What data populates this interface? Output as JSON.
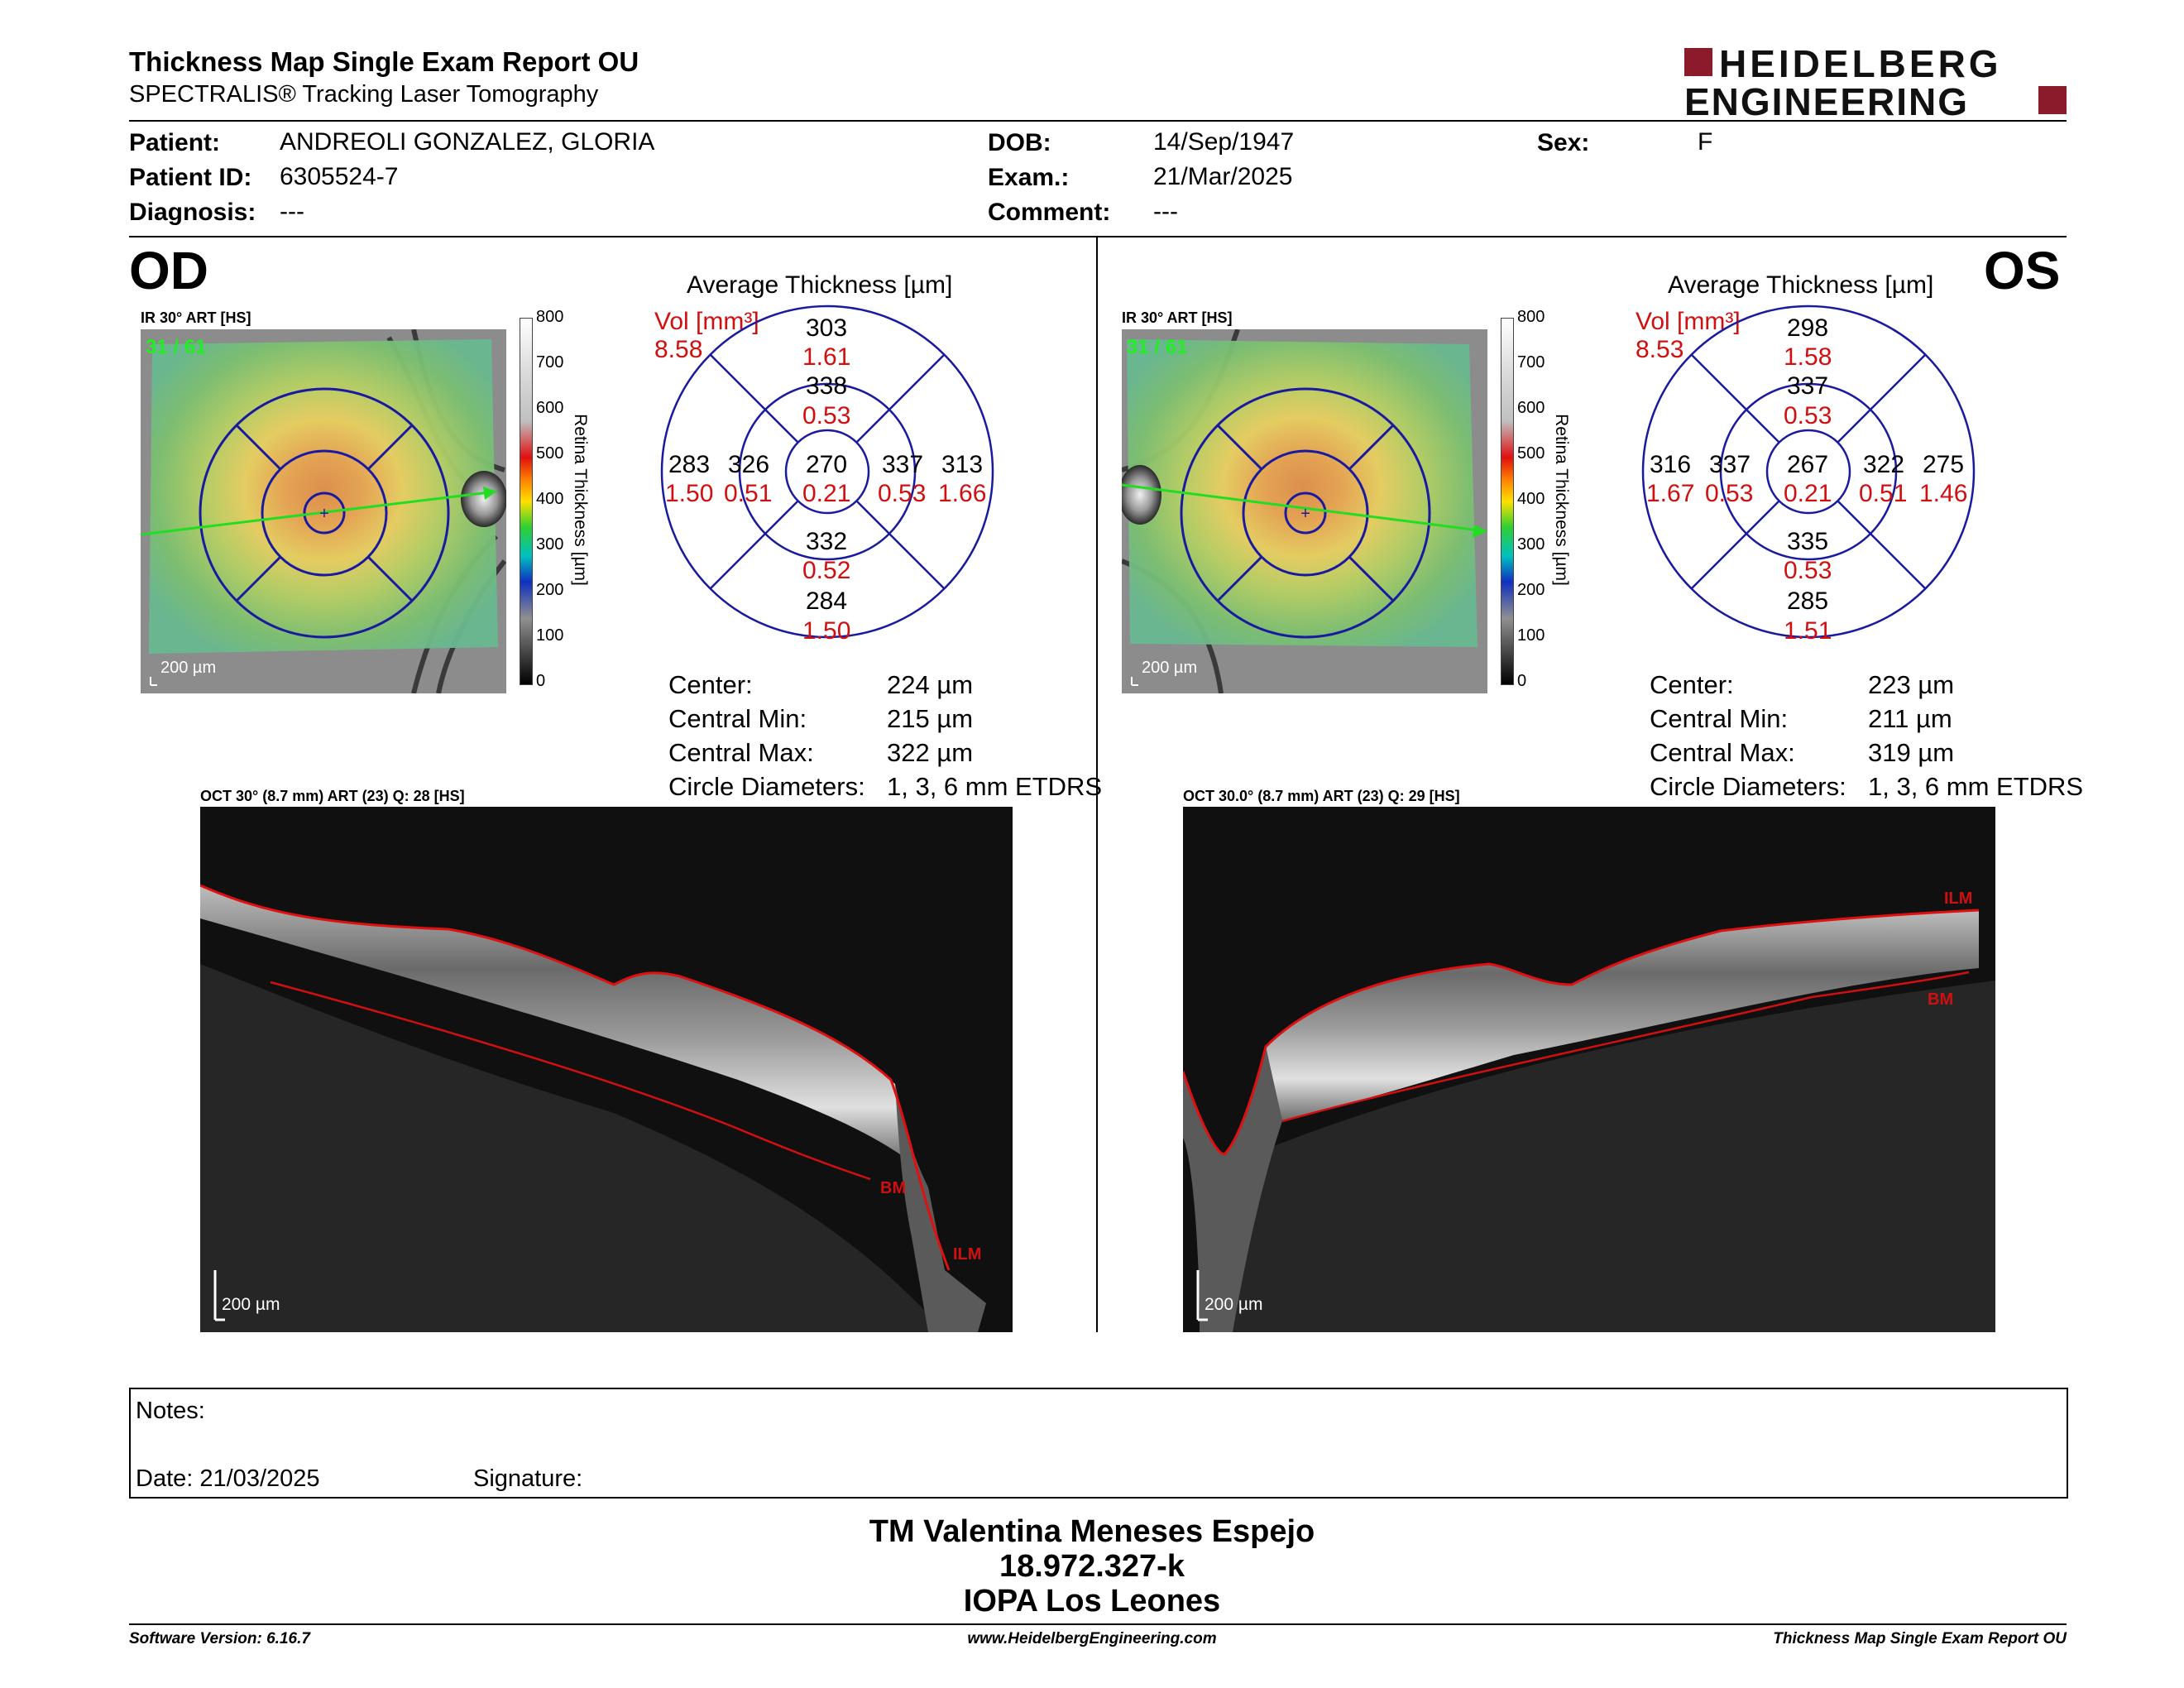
{
  "header": {
    "title": "Thickness Map Single Exam Report OU",
    "subtitle": "SPECTRALIS® Tracking Laser Tomography",
    "logo_line1": "HEIDELBERG",
    "logo_line2": "ENGINEERING",
    "logo_color": "#8b1a2a"
  },
  "patient": {
    "patient_label": "Patient:",
    "patient_value": "ANDREOLI GONZALEZ, GLORIA",
    "id_label": "Patient ID:",
    "id_value": "6305524-7",
    "diagnosis_label": "Diagnosis:",
    "diagnosis_value": "---",
    "dob_label": "DOB:",
    "dob_value": "14/Sep/1947",
    "exam_label": "Exam.:",
    "exam_value": "21/Mar/2025",
    "comment_label": "Comment:",
    "comment_value": "---",
    "sex_label": "Sex:",
    "sex_value": "F"
  },
  "od": {
    "eye": "OD",
    "ir_label": "IR 30° ART [HS]",
    "ir_overlay": "31 / 61",
    "scale_bar": "200 µm",
    "colorbar_ticks": [
      "800",
      "700",
      "600",
      "500",
      "400",
      "300",
      "200",
      "100",
      "0"
    ],
    "colorbar_title": "Retina Thickness [µm]",
    "avg_title": "Average Thickness [µm]",
    "vol_label": "Vol [mm³]",
    "vol_value": "8.58",
    "etdrs": {
      "center": [
        "270",
        "0.21"
      ],
      "inner_sup": [
        "338",
        "0.53"
      ],
      "inner_inf": [
        "332",
        "0.52"
      ],
      "inner_left": [
        "326",
        "0.51"
      ],
      "inner_right": [
        "337",
        "0.53"
      ],
      "outer_sup": [
        "303",
        "1.61"
      ],
      "outer_inf": [
        "284",
        "1.50"
      ],
      "outer_left": [
        "283",
        "1.50"
      ],
      "outer_right": [
        "313",
        "1.66"
      ]
    },
    "stats": [
      {
        "label": "Center:",
        "value": "224 µm"
      },
      {
        "label": "Central Min:",
        "value": "215 µm"
      },
      {
        "label": "Central Max:",
        "value": "322 µm"
      },
      {
        "label": "Circle Diameters:",
        "value": "1, 3, 6 mm ETDRS"
      }
    ],
    "oct_label": "OCT 30° (8.7 mm) ART (23) Q: 28 [HS]",
    "oct_scale": "200 µm",
    "ilm": "ILM",
    "bm": "BM"
  },
  "os": {
    "eye": "OS",
    "ir_label": "IR 30° ART [HS]",
    "ir_overlay": "31 / 61",
    "scale_bar": "200 µm",
    "colorbar_ticks": [
      "800",
      "700",
      "600",
      "500",
      "400",
      "300",
      "200",
      "100",
      "0"
    ],
    "colorbar_title": "Retina Thickness [µm]",
    "avg_title": "Average Thickness [µm]",
    "vol_label": "Vol [mm³]",
    "vol_value": "8.53",
    "etdrs": {
      "center": [
        "267",
        "0.21"
      ],
      "inner_sup": [
        "337",
        "0.53"
      ],
      "inner_inf": [
        "335",
        "0.53"
      ],
      "inner_left": [
        "337",
        "0.53"
      ],
      "inner_right": [
        "322",
        "0.51"
      ],
      "outer_sup": [
        "298",
        "1.58"
      ],
      "outer_inf": [
        "285",
        "1.51"
      ],
      "outer_left": [
        "316",
        "1.67"
      ],
      "outer_right": [
        "275",
        "1.46"
      ]
    },
    "stats": [
      {
        "label": "Center:",
        "value": "223 µm"
      },
      {
        "label": "Central Min:",
        "value": "211 µm"
      },
      {
        "label": "Central Max:",
        "value": "319 µm"
      },
      {
        "label": "Circle Diameters:",
        "value": "1, 3, 6 mm ETDRS"
      }
    ],
    "oct_label": "OCT 30.0° (8.7 mm) ART (23) Q: 29 [HS]",
    "oct_scale": "200 µm",
    "ilm": "ILM",
    "bm": "BM"
  },
  "notes": {
    "notes_label": "Notes:",
    "date_label": "Date: 21/03/2025",
    "signature_label": "Signature:"
  },
  "footer": {
    "line1": "TM Valentina Meneses Espejo",
    "line2": "18.972.327-k",
    "line3": "IOPA Los Leones",
    "software": "Software Version: 6.16.7",
    "website": "www.HeidelbergEngineering.com",
    "report": "Thickness Map Single Exam Report OU"
  }
}
